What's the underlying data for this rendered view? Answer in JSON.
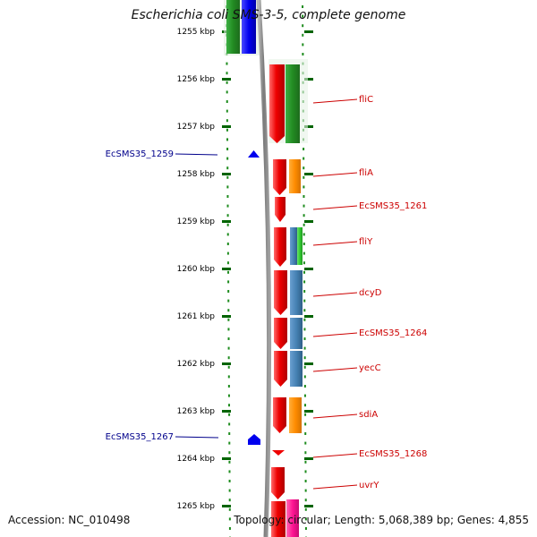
{
  "title": "Escherichia coli SMS-3-5, complete genome",
  "accession": "Accession: NC_010498",
  "topology": "Topology: circular; Length: 5,068,389 bp; Genes: 4,855",
  "scale_ticks": [
    "1255 kbp",
    "1256 kbp",
    "1257 kbp",
    "1258 kbp",
    "1259 kbp",
    "1260 kbp",
    "1261 kbp",
    "1262 kbp",
    "1263 kbp",
    "1264 kbp",
    "1265 kbp"
  ],
  "left_labels": [
    "EcSMS35_1259",
    "EcSMS35_1267"
  ],
  "right_labels": [
    "fliC",
    "fliA",
    "EcSMS35_1261",
    "fliY",
    "dcyD",
    "EcSMS35_1264",
    "yecC",
    "sdiA",
    "EcSMS35_1268",
    "uvrY"
  ],
  "colors": {
    "left_label": "#00008b",
    "right_label": "#cc0000",
    "gene_red": "#ee0000",
    "green": "#228b22",
    "blue": "#0000ee",
    "orange": "#ff8c00",
    "steelblue": "#4682b4",
    "lightgreen": "#32cd32",
    "pink": "#ff1493",
    "axis": "#808080",
    "tick": "#006400"
  }
}
